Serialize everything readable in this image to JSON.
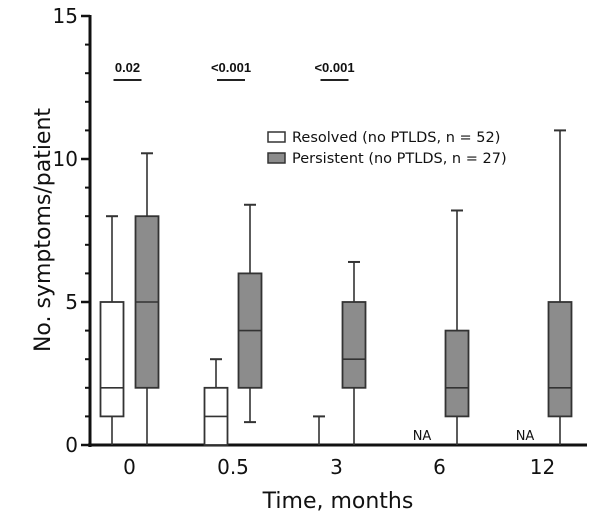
{
  "chart_data": {
    "type": "boxplot",
    "title": "",
    "xlabel": "Time, months",
    "ylabel": "No. symptoms/patient",
    "ylim": [
      0,
      15
    ],
    "yticks": [
      0,
      5,
      10,
      15
    ],
    "yminor_step": 1,
    "categories": [
      "0",
      "0.5",
      "3",
      "6",
      "12"
    ],
    "grid": false,
    "legend_position": "top-right",
    "series": [
      {
        "name": "Resolved (no PTLDS, n = 52)",
        "fill": "#ffffff",
        "stroke": "#333333",
        "boxes": [
          {
            "category": "0",
            "min": 0,
            "q1": 1,
            "median": 2,
            "q3": 5,
            "max": 8
          },
          {
            "category": "0.5",
            "min": 0,
            "q1": 0,
            "median": 1,
            "q3": 2,
            "max": 3
          },
          {
            "category": "3",
            "min": 0,
            "q1": 0,
            "median": 0,
            "q3": 0,
            "max": 1
          },
          {
            "category": "6",
            "na": true
          },
          {
            "category": "12",
            "na": true
          }
        ]
      },
      {
        "name": "Persistent (no PTLDS, n = 27)",
        "fill": "#8c8c8c",
        "stroke": "#333333",
        "boxes": [
          {
            "category": "0",
            "min": 0,
            "q1": 2,
            "median": 5,
            "q3": 8,
            "max": 10.2
          },
          {
            "category": "0.5",
            "min": 0.8,
            "q1": 2,
            "median": 4,
            "q3": 6,
            "max": 8.4
          },
          {
            "category": "3",
            "min": 0,
            "q1": 2,
            "median": 3,
            "q3": 5,
            "max": 6.4
          },
          {
            "category": "6",
            "min": 0,
            "q1": 1,
            "median": 2,
            "q3": 4,
            "max": 8.2
          },
          {
            "category": "12",
            "min": 0,
            "q1": 1,
            "median": 2,
            "q3": 5,
            "max": 11
          }
        ]
      }
    ],
    "na_label": "NA",
    "annotations": [
      {
        "category": "0",
        "text": "0.02"
      },
      {
        "category": "0.5",
        "text": "<0.001"
      },
      {
        "category": "3",
        "text": "<0.001"
      }
    ]
  }
}
